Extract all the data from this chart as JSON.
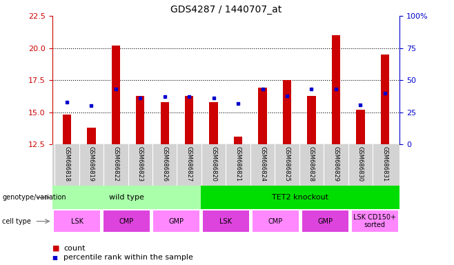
{
  "title": "GDS4287 / 1440707_at",
  "samples": [
    "GSM686818",
    "GSM686819",
    "GSM686822",
    "GSM686823",
    "GSM686826",
    "GSM686827",
    "GSM686820",
    "GSM686821",
    "GSM686824",
    "GSM686825",
    "GSM686828",
    "GSM686829",
    "GSM686830",
    "GSM686831"
  ],
  "counts": [
    14.8,
    13.8,
    20.2,
    16.3,
    15.8,
    16.3,
    15.8,
    13.1,
    16.9,
    17.5,
    16.3,
    21.0,
    15.2,
    19.5
  ],
  "percentile_ranks": [
    33,
    30,
    43,
    36,
    37,
    37,
    36,
    32,
    43,
    38,
    43,
    43,
    31,
    40
  ],
  "ylim_left": [
    12.5,
    22.5
  ],
  "ylim_right": [
    0,
    100
  ],
  "yticks_left": [
    12.5,
    15.0,
    17.5,
    20.0,
    22.5
  ],
  "yticks_right": [
    0,
    25,
    50,
    75,
    100
  ],
  "bar_color": "#cc0000",
  "dot_color": "#0000cc",
  "bar_width": 0.35,
  "genotype_groups": [
    {
      "label": "wild type",
      "start": 0,
      "end": 6,
      "color": "#aaffaa"
    },
    {
      "label": "TET2 knockout",
      "start": 6,
      "end": 14,
      "color": "#00dd00"
    }
  ],
  "cell_type_groups": [
    {
      "label": "LSK",
      "start": 0,
      "end": 2,
      "color": "#ff88ff"
    },
    {
      "label": "CMP",
      "start": 2,
      "end": 4,
      "color": "#dd44dd"
    },
    {
      "label": "GMP",
      "start": 4,
      "end": 6,
      "color": "#ff88ff"
    },
    {
      "label": "LSK",
      "start": 6,
      "end": 8,
      "color": "#dd44dd"
    },
    {
      "label": "CMP",
      "start": 8,
      "end": 10,
      "color": "#ff88ff"
    },
    {
      "label": "GMP",
      "start": 10,
      "end": 12,
      "color": "#dd44dd"
    },
    {
      "label": "LSK CD150+\nsorted",
      "start": 12,
      "end": 14,
      "color": "#ff88ff"
    }
  ],
  "legend_count_color": "#cc0000",
  "legend_dot_color": "#0000cc",
  "left_axis_color": "#cc0000",
  "right_axis_color": "#0000cc",
  "background_color": "#ffffff",
  "sample_area_color": "#d3d3d3"
}
